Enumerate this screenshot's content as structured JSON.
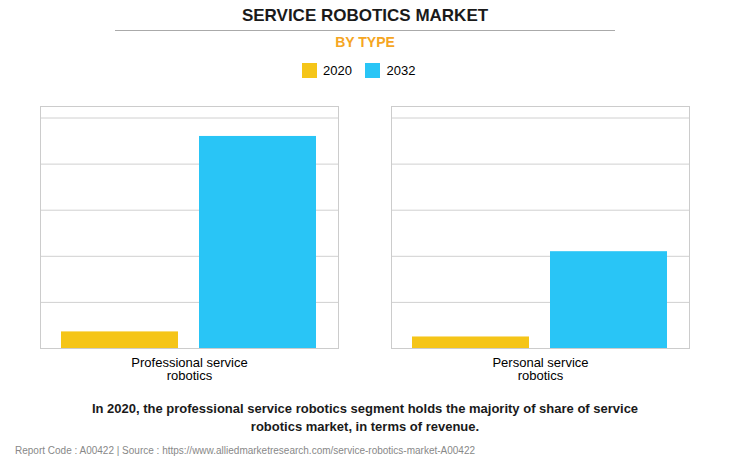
{
  "chart_data": {
    "type": "bar",
    "title": "SERVICE ROBOTICS MARKET",
    "subtitle": "BY TYPE",
    "categories": [
      "Professional service\nrobotics",
      "Personal service\nrobotics"
    ],
    "series": [
      {
        "name": "2020",
        "color": "#F5C518",
        "values": [
          0.072,
          0.05
        ]
      },
      {
        "name": "2032",
        "color": "#29C5F6",
        "values": [
          0.92,
          0.42
        ]
      }
    ],
    "ylim": [
      0,
      1.05
    ],
    "yticks": [
      0,
      0.2,
      0.4,
      0.6,
      0.8,
      1.0
    ],
    "grid": true,
    "tick_labels": "x",
    "legend": "top",
    "annotations": [
      "In 2020, the professional service robotics segment holds the majority of share of service\nrobotics market, in terms of revenue.",
      "Report Code : A00422  |  Source : https://www.alliedmarketresearch.com/service-robotics-market-A00422"
    ]
  }
}
